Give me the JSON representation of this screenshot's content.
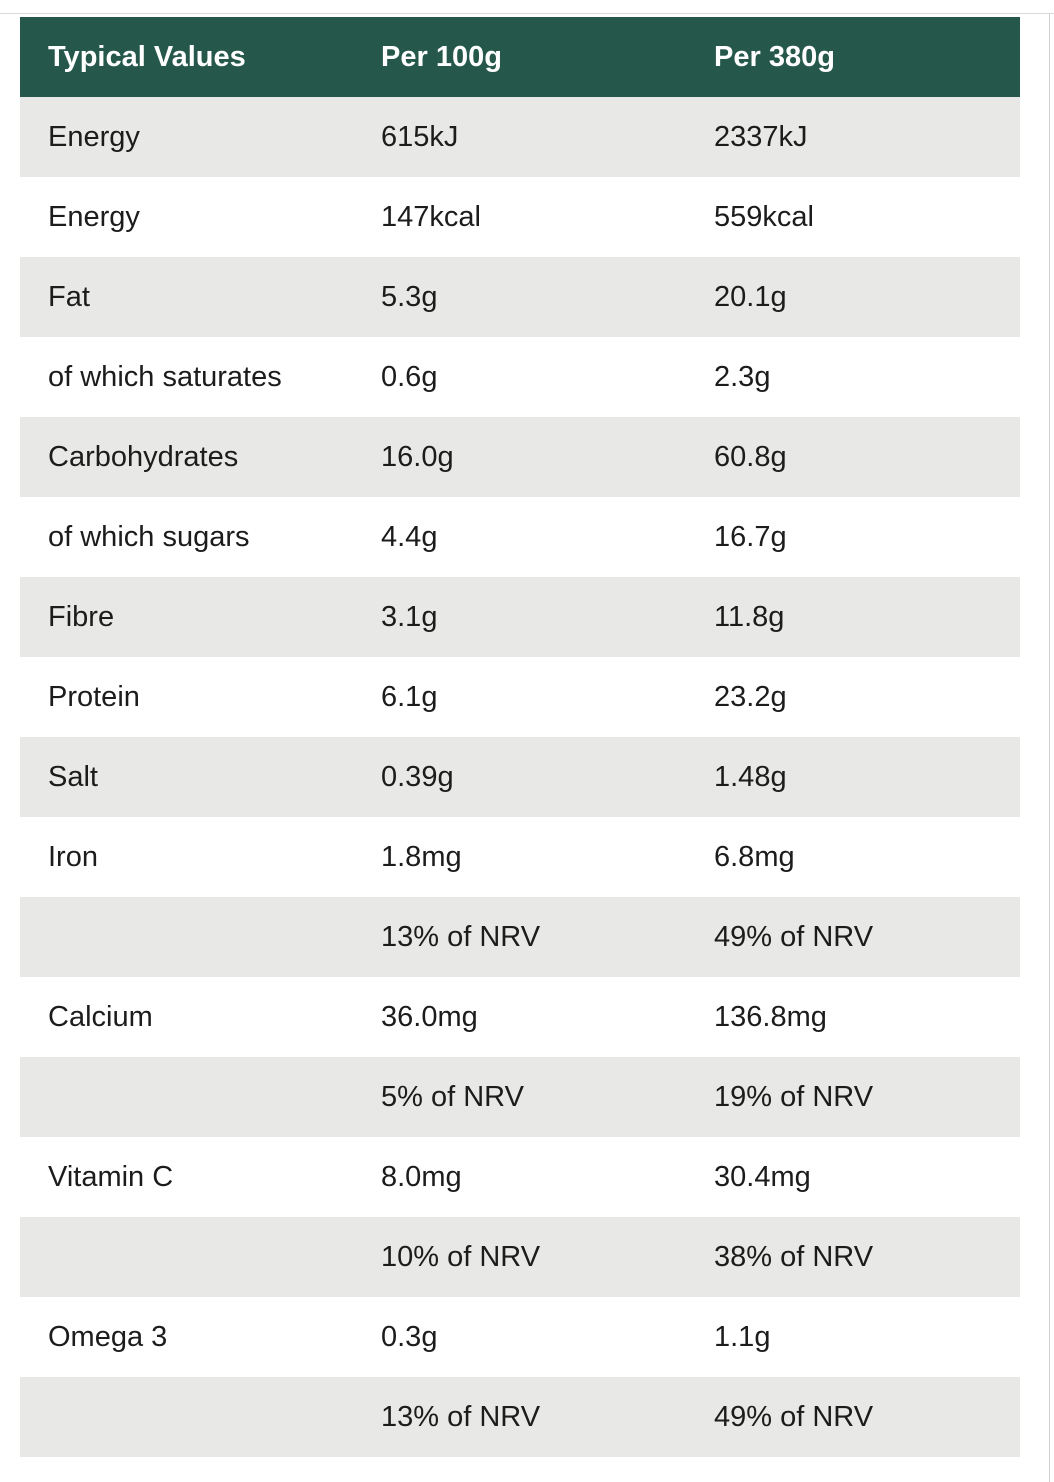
{
  "table": {
    "header": [
      "Typical Values",
      "Per 100g",
      "Per 380g"
    ],
    "rows": [
      [
        "Energy",
        "615kJ",
        "2337kJ"
      ],
      [
        "Energy",
        "147kcal",
        "559kcal"
      ],
      [
        "Fat",
        "5.3g",
        "20.1g"
      ],
      [
        "of which saturates",
        "0.6g",
        "2.3g"
      ],
      [
        "Carbohydrates",
        "16.0g",
        "60.8g"
      ],
      [
        "of which sugars",
        "4.4g",
        "16.7g"
      ],
      [
        "Fibre",
        "3.1g",
        "11.8g"
      ],
      [
        "Protein",
        "6.1g",
        "23.2g"
      ],
      [
        "Salt",
        "0.39g",
        "1.48g"
      ],
      [
        "Iron",
        "1.8mg",
        "6.8mg"
      ],
      [
        null,
        "13% of NRV",
        "49% of NRV"
      ],
      [
        "Calcium",
        "36.0mg",
        "136.8mg"
      ],
      [
        null,
        "5% of NRV",
        "19% of NRV"
      ],
      [
        "Vitamin C",
        "8.0mg",
        "30.4mg"
      ],
      [
        null,
        "10% of NRV",
        "38% of NRV"
      ],
      [
        "Omega 3",
        "0.3g",
        "1.1g"
      ],
      [
        null,
        "13% of NRV",
        "49% of NRV"
      ]
    ]
  }
}
